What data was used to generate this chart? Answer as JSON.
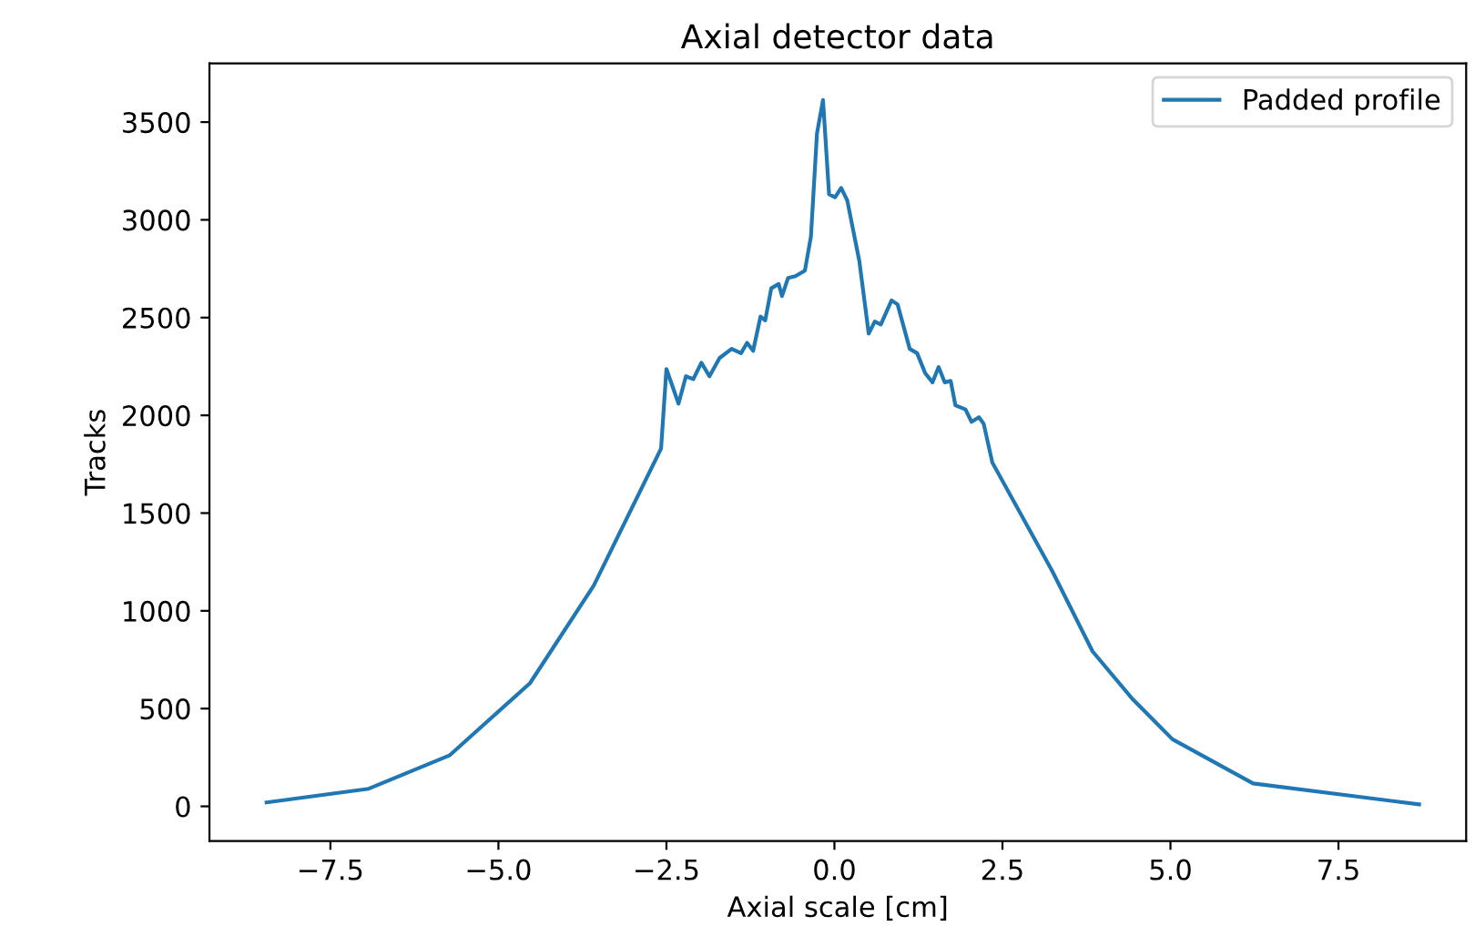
{
  "chart_data": {
    "type": "line",
    "title": "Axial detector data",
    "xlabel": "Axial scale [cm]",
    "ylabel": "Tracks",
    "series": [
      {
        "name": "Padded profile",
        "color": "#1f77b4",
        "x": [
          -8.45,
          -6.93,
          -5.73,
          -4.53,
          -3.58,
          -2.58,
          -2.5,
          -2.32,
          -2.21,
          -2.1,
          -1.98,
          -1.86,
          -1.71,
          -1.53,
          -1.39,
          -1.3,
          -1.21,
          -1.1,
          -1.03,
          -0.94,
          -0.83,
          -0.78,
          -0.69,
          -0.58,
          -0.44,
          -0.35,
          -0.26,
          -0.17,
          -0.08,
          0.01,
          0.1,
          0.19,
          0.37,
          0.51,
          0.6,
          0.69,
          0.85,
          0.94,
          1.12,
          1.23,
          1.35,
          1.46,
          1.55,
          1.64,
          1.73,
          1.8,
          1.95,
          2.04,
          2.15,
          2.22,
          2.35,
          3.24,
          3.84,
          4.44,
          5.03,
          6.23,
          8.7
        ],
        "values": [
          20,
          90,
          260,
          630,
          1130,
          1830,
          2237,
          2060,
          2200,
          2185,
          2269,
          2200,
          2293,
          2340,
          2318,
          2371,
          2330,
          2505,
          2486,
          2650,
          2672,
          2610,
          2703,
          2712,
          2740,
          2914,
          3442,
          3613,
          3131,
          3116,
          3163,
          3100,
          2790,
          2418,
          2480,
          2465,
          2588,
          2567,
          2340,
          2318,
          2216,
          2169,
          2247,
          2169,
          2176,
          2051,
          2030,
          1967,
          1990,
          1958,
          1758,
          1204,
          793,
          547,
          343,
          117,
          10
        ]
      }
    ],
    "xlim": [
      -9.3,
      9.4
    ],
    "ylim": [
      -177,
      3800
    ],
    "xticks": [
      {
        "value": -7.5,
        "label": "−7.5"
      },
      {
        "value": -5,
        "label": "−5.0"
      },
      {
        "value": -2.5,
        "label": "−2.5"
      },
      {
        "value": 0,
        "label": "0.0"
      },
      {
        "value": 2.5,
        "label": "2.5"
      },
      {
        "value": 5,
        "label": "5.0"
      },
      {
        "value": 7.5,
        "label": "7.5"
      }
    ],
    "yticks": [
      0,
      500,
      1000,
      1500,
      2000,
      2500,
      3000,
      3500
    ],
    "legend": "top right",
    "grid": false
  }
}
